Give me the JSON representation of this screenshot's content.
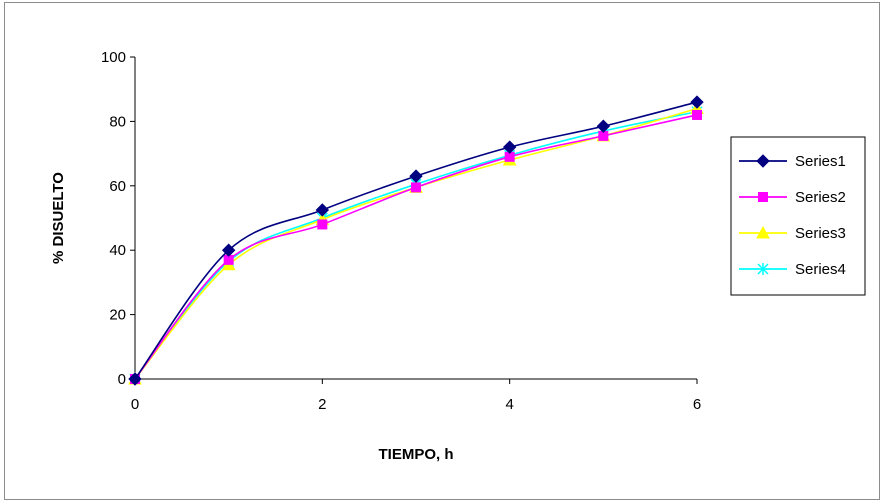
{
  "chart_data": {
    "type": "line",
    "title": "",
    "xlabel": "TIEMPO, h",
    "ylabel": "% DISUELTO",
    "xlim": [
      0,
      6
    ],
    "ylim": [
      0,
      100
    ],
    "xticks": [
      "0",
      "2",
      "4",
      "6"
    ],
    "yticks": [
      "0",
      "20",
      "40",
      "60",
      "80",
      "100"
    ],
    "grid": false,
    "legend_position": "right",
    "x": [
      0,
      1,
      2,
      3,
      4,
      5,
      6
    ],
    "series": [
      {
        "name": "Series1",
        "values": [
          0,
          40,
          52.5,
          63,
          72,
          78.5,
          86
        ],
        "color": "#000080",
        "marker": "diamond"
      },
      {
        "name": "Series2",
        "values": [
          0,
          37,
          48,
          59.5,
          69,
          75.5,
          82
        ],
        "color": "#ff00ff",
        "marker": "square"
      },
      {
        "name": "Series3",
        "values": [
          0,
          35.5,
          49.5,
          59.5,
          68,
          75.5,
          84
        ],
        "color": "#ffff00",
        "marker": "triangle"
      },
      {
        "name": "Series4",
        "values": [
          0,
          36.5,
          50,
          60.5,
          69.5,
          77,
          83
        ],
        "color": "#00ffff",
        "marker": "x"
      }
    ]
  }
}
